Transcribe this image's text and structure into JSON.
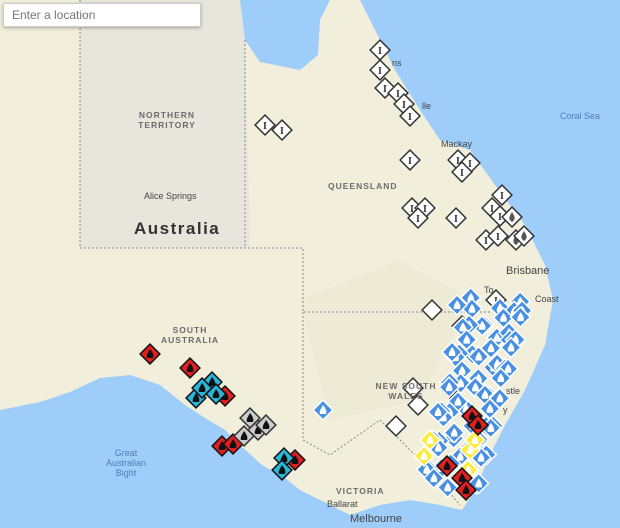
{
  "search": {
    "placeholder": "Enter a location"
  },
  "labels": {
    "country": "Australia",
    "northern_territory": "NORTHERN TERRITORY",
    "queensland": "QUEENSLAND",
    "south_australia": "SOUTH AUSTRALIA",
    "new_south_wales": "NEW SOUTH WALES",
    "victoria": "VICTORIA",
    "alice_springs": "Alice Springs",
    "brisbane": "Brisbane",
    "melbourne": "Melbourne",
    "mackay": "Mackay",
    "ballarat": "Ballarat",
    "gold_coast_fragment": "Coast",
    "newcastle_fragment": "stle",
    "sydney_fragment": "y",
    "cairns_fragment": "ns",
    "townsville_fragment": "lle",
    "toowoomba_fragment": "To",
    "coral_sea": "Coral Sea",
    "great_australian_bight": "Great Australian Bight"
  },
  "colors": {
    "ocean": "#9ecdfa",
    "land": "#f3f0e0",
    "incident_marker": "#ffffff",
    "fire_advice": "#4a90e2",
    "fire_watch_act": "#ffeb3b",
    "fire_emergency": "#e02020",
    "burn_off": "#29b6d8"
  },
  "marker_types": [
    "incident-icon",
    "fire-advice-icon",
    "fire-watch-act-icon",
    "fire-emergency-icon",
    "burn-off-icon",
    "hazard-icon",
    "planned-burn-icon"
  ]
}
